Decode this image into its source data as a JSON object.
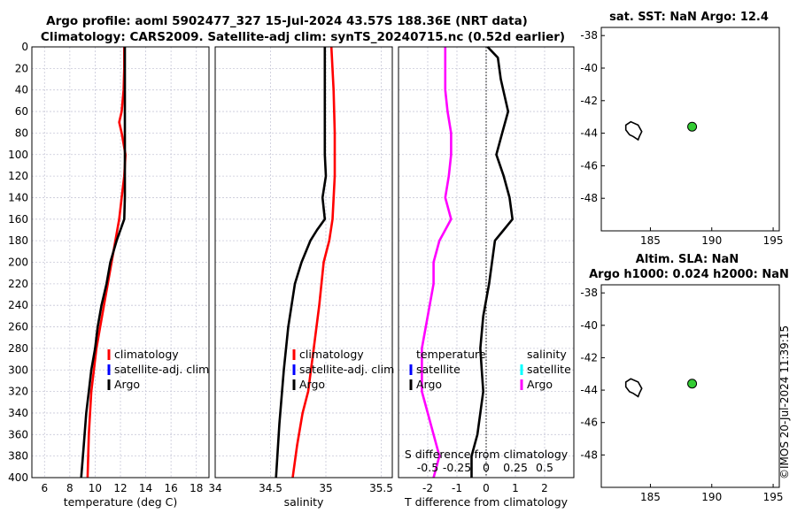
{
  "title": {
    "line1": "Argo profile: aoml 5902477_327 15-Jul-2024 43.57S 188.36E (NRT data)",
    "line2": "Climatology: CARS2009. Satellite-adj clim: synTS_20240715.nc (0.52d earlier)"
  },
  "timestamp": "©IMOS 20-Jul-2024 11:39:15",
  "colors": {
    "climatology": "#ff0000",
    "satellite_clim": "#0000ff",
    "argo": "#000000",
    "s_satellite": "#00ffff",
    "s_argo": "#ff00ff",
    "map_float": "#33cc33"
  },
  "depth_axis": {
    "min": 0,
    "max": 400,
    "ticks": [
      0,
      20,
      40,
      60,
      80,
      100,
      120,
      140,
      160,
      180,
      200,
      220,
      240,
      260,
      280,
      300,
      320,
      340,
      360,
      380,
      400
    ]
  },
  "chart_data": [
    {
      "id": "temperature",
      "type": "line",
      "xlabel": "temperature (deg C)",
      "xlim": [
        5,
        19
      ],
      "xticks": [
        6,
        8,
        10,
        12,
        14,
        16,
        18
      ],
      "legend": [
        "climatology",
        "satellite-adj. clim",
        "Argo"
      ],
      "series": [
        {
          "name": "climatology",
          "color": "#ff0000",
          "x": [
            12.3,
            12.3,
            12.3,
            12.25,
            12.1,
            11.9,
            12.1,
            12.4,
            12.3,
            12.1,
            11.9,
            11.6,
            11.3,
            11.0,
            10.7,
            10.4,
            10.1,
            9.9,
            9.7,
            9.5,
            9.4
          ],
          "y": [
            0,
            10,
            20,
            40,
            60,
            70,
            80,
            100,
            120,
            140,
            160,
            180,
            200,
            220,
            240,
            260,
            280,
            300,
            320,
            360,
            400
          ]
        },
        {
          "name": "Argo",
          "color": "#000000",
          "x": [
            12.35,
            12.35,
            12.35,
            12.35,
            12.35,
            12.35,
            12.35,
            12.35,
            12.3,
            12.0,
            11.7,
            11.2,
            10.9,
            10.5,
            10.2,
            10.0,
            9.7,
            9.5,
            9.3,
            9.1,
            8.9
          ],
          "y": [
            0,
            20,
            40,
            60,
            80,
            100,
            120,
            140,
            160,
            170,
            180,
            200,
            220,
            240,
            260,
            280,
            300,
            320,
            340,
            370,
            400
          ]
        }
      ]
    },
    {
      "id": "salinity",
      "type": "line",
      "xlabel": "salinity",
      "xlim": [
        34,
        35.6
      ],
      "xticks": [
        34,
        34.5,
        35,
        35.5
      ],
      "xticklabels": [
        "34",
        "34.5",
        "35",
        "35.5"
      ],
      "legend": [
        "climatology",
        "satellite-adj. clim",
        "Argo"
      ],
      "series": [
        {
          "name": "climatology",
          "color": "#ff0000",
          "x": [
            35.05,
            35.07,
            35.08,
            35.08,
            35.06,
            35.03,
            34.98,
            34.94,
            34.89,
            34.84,
            34.79,
            34.74,
            34.7
          ],
          "y": [
            0,
            40,
            80,
            120,
            160,
            180,
            200,
            240,
            280,
            320,
            340,
            370,
            400
          ]
        },
        {
          "name": "Argo",
          "color": "#000000",
          "x": [
            34.99,
            34.99,
            34.99,
            34.99,
            34.99,
            34.99,
            35.0,
            34.97,
            34.99,
            34.92,
            34.86,
            34.78,
            34.72,
            34.66,
            34.62,
            34.58,
            34.55
          ],
          "y": [
            0,
            20,
            40,
            60,
            80,
            100,
            120,
            140,
            160,
            170,
            180,
            200,
            220,
            260,
            300,
            350,
            400
          ]
        }
      ]
    },
    {
      "id": "difference",
      "type": "line",
      "xlabel": "T difference from climatology",
      "toplabel": "S difference from climatology",
      "xlim": [
        -3,
        3
      ],
      "xticks": [
        -2,
        -1,
        0,
        1,
        2
      ],
      "s_ticklabels": [
        "-0.5",
        "-0.25",
        "0",
        "0.25",
        "0.5"
      ],
      "legend_t": [
        "temperature",
        "satellite",
        "Argo"
      ],
      "legend_s": [
        "salinity",
        "satellite",
        "Argo"
      ],
      "series": [
        {
          "name": "T diff Argo",
          "color": "#000000",
          "x": [
            0.05,
            0.4,
            0.5,
            0.75,
            0.55,
            0.35,
            0.6,
            0.8,
            0.9,
            0.6,
            0.3,
            0.2,
            0.1,
            -0.1,
            -0.2,
            -0.15,
            -0.1,
            -0.2,
            -0.3,
            -0.5,
            -0.5
          ],
          "y": [
            0,
            10,
            30,
            60,
            80,
            100,
            120,
            140,
            160,
            170,
            180,
            200,
            220,
            250,
            280,
            300,
            320,
            340,
            360,
            380,
            400
          ]
        },
        {
          "name": "S diff Argo",
          "color": "#ff00ff",
          "x": [
            -0.35,
            -0.35,
            -0.35,
            -0.33,
            -0.3,
            -0.3,
            -0.32,
            -0.35,
            -0.3,
            -0.35,
            -0.4,
            -0.45,
            -0.45,
            -0.5,
            -0.55,
            -0.55,
            -0.55,
            -0.5,
            -0.45,
            -0.4,
            -0.45
          ],
          "y": [
            0,
            20,
            40,
            60,
            80,
            100,
            120,
            140,
            160,
            170,
            180,
            200,
            220,
            250,
            280,
            300,
            320,
            340,
            360,
            380,
            400
          ]
        }
      ]
    },
    {
      "id": "map_sst",
      "type": "scatter",
      "title": "sat. SST: NaN Argo: 12.4",
      "xlim": [
        181,
        195.5
      ],
      "ylim": [
        -50,
        -37.5
      ],
      "xticks": [
        185,
        190,
        195
      ],
      "yticks": [
        -38,
        -40,
        -42,
        -44,
        -46,
        -48
      ],
      "float": {
        "x": 188.4,
        "y": -43.6
      },
      "island": {
        "x": [
          183.0,
          183.4,
          184.0,
          184.3,
          184.1,
          184.0,
          183.6,
          183.3,
          183.0
        ],
        "y": [
          -43.5,
          -43.3,
          -43.5,
          -43.9,
          -44.2,
          -44.4,
          -44.2,
          -44.1,
          -43.8
        ]
      }
    },
    {
      "id": "map_sla",
      "type": "scatter",
      "title_line1": "Altim. SLA: NaN",
      "title_line2": "Argo h1000: 0.024 h2000: NaN",
      "xlim": [
        181,
        195.5
      ],
      "ylim": [
        -50,
        -37.5
      ],
      "xticks": [
        185,
        190,
        195
      ],
      "yticks": [
        -38,
        -40,
        -42,
        -44,
        -46,
        -48
      ],
      "float": {
        "x": 188.4,
        "y": -43.6
      },
      "island": {
        "x": [
          183.0,
          183.4,
          184.0,
          184.3,
          184.1,
          184.0,
          183.6,
          183.3,
          183.0
        ],
        "y": [
          -43.5,
          -43.3,
          -43.5,
          -43.9,
          -44.2,
          -44.4,
          -44.2,
          -44.1,
          -43.8
        ]
      }
    }
  ]
}
